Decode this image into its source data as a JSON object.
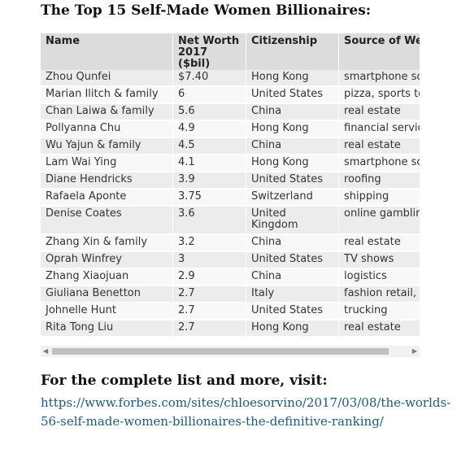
{
  "heading": "The Top 15 Self-Made Women Billionaires:",
  "table": {
    "headers": [
      "Name",
      "Net Worth 2017 ($bil)",
      "Citizenship",
      "Source of Wealth"
    ],
    "rows": [
      [
        "Zhou Qunfei",
        "$7.40",
        "Hong Kong",
        "smartphone screens"
      ],
      [
        "Marian Ilitch & family",
        "6",
        "United States",
        "pizza, sports teams"
      ],
      [
        "Chan Laiwa & family",
        "5.6",
        "China",
        "real estate"
      ],
      [
        "Pollyanna Chu",
        "4.9",
        "Hong Kong",
        "financial services"
      ],
      [
        "Wu Yajun & family",
        "4.5",
        "China",
        "real estate"
      ],
      [
        "Lam Wai Ying",
        "4.1",
        "Hong Kong",
        "smartphone screens"
      ],
      [
        "Diane Hendricks",
        "3.9",
        "United States",
        "roofing"
      ],
      [
        "Rafaela Aponte",
        "3.75",
        "Switzerland",
        "shipping"
      ],
      [
        "Denise Coates",
        "3.6",
        "United Kingdom",
        "online gambling"
      ],
      [
        "Zhang Xin & family",
        "3.2",
        "China",
        "real estate"
      ],
      [
        "Oprah Winfrey",
        "3",
        "United States",
        "TV shows"
      ],
      [
        "Zhang Xiaojuan",
        "2.9",
        "China",
        "logistics"
      ],
      [
        "Giuliana Benetton",
        "2.7",
        "Italy",
        "fashion retail, investments"
      ],
      [
        "Johnelle Hunt",
        "2.7",
        "United States",
        "trucking"
      ],
      [
        "Rita Tong Liu",
        "2.7",
        "Hong Kong",
        "real estate"
      ]
    ]
  },
  "scrollbar": {
    "left_arrow": "◀",
    "right_arrow": "▶"
  },
  "visit_heading": "For the complete list and more, visit:",
  "link_text": "https://www.forbes.com/sites/chloesorvino/2017/03/08/the-worlds-56-self-made-women-billionaires-the-definitive-ranking/",
  "colors": {
    "link": "#1c5a7a",
    "header_bg": "#dcdcdc",
    "row_odd": "#ececec",
    "row_even": "#f8f8f8"
  }
}
